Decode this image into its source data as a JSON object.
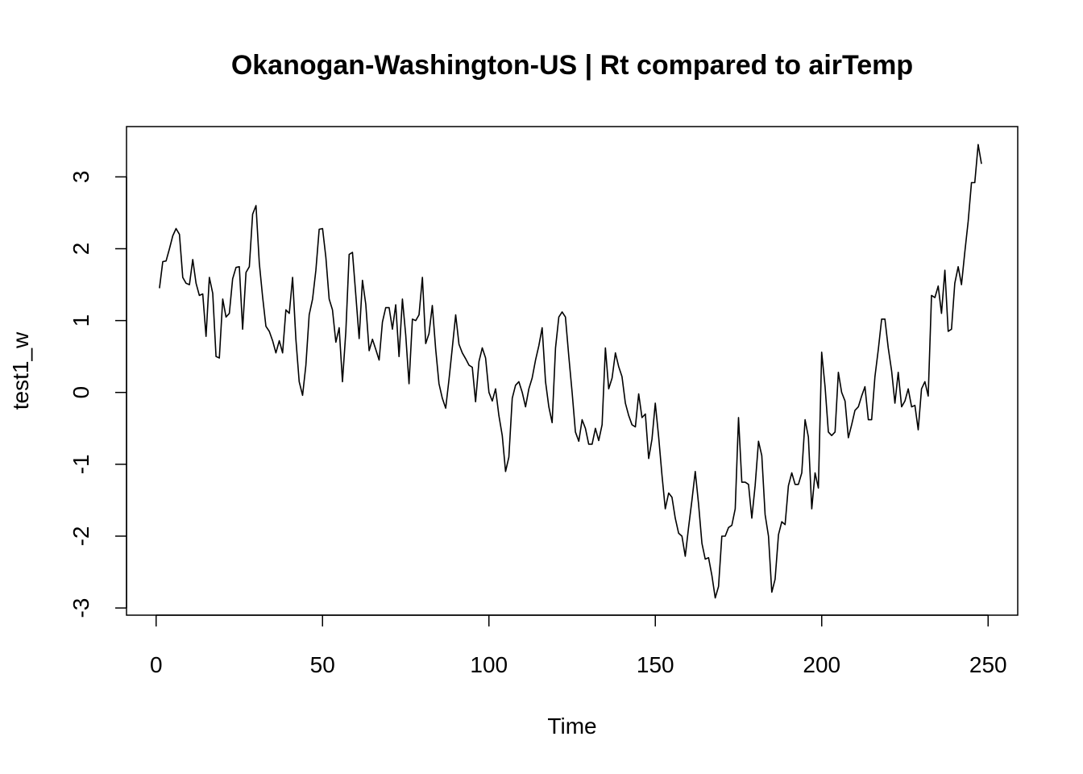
{
  "chart_data": {
    "type": "line",
    "title": "Okanogan-Washington-US | Rt compared to airTemp",
    "xlabel": "Time",
    "ylabel": "test1_w",
    "xlim": [
      -8.9,
      258.9
    ],
    "ylim": [
      -3.1,
      3.7
    ],
    "xticks": [
      0,
      50,
      100,
      150,
      200,
      250
    ],
    "yticks": [
      -3,
      -2,
      -1,
      0,
      1,
      2,
      3
    ],
    "grid": false,
    "legend": "none",
    "line_color": "#000000",
    "series": [
      {
        "x": [
          1,
          2,
          3,
          4,
          5,
          6,
          7,
          8,
          9,
          10,
          11,
          12,
          13,
          14,
          15,
          16,
          17,
          18,
          19,
          20,
          21,
          22,
          23,
          24,
          25,
          26,
          27,
          28,
          29,
          30,
          31,
          32,
          33,
          34,
          35,
          36,
          37,
          38,
          39,
          40,
          41,
          42,
          43,
          44,
          45,
          46,
          47,
          48,
          49,
          50,
          51,
          52,
          53,
          54,
          55,
          56,
          57,
          58,
          59,
          60,
          61,
          62,
          63,
          64,
          65,
          66,
          67,
          68,
          69,
          70,
          71,
          72,
          73,
          74,
          75,
          76,
          77,
          78,
          79,
          80,
          81,
          82,
          83,
          84,
          85,
          86,
          87,
          88,
          89,
          90,
          91,
          92,
          93,
          94,
          95,
          96,
          97,
          98,
          99,
          100,
          101,
          102,
          103,
          104,
          105,
          106,
          107,
          108,
          109,
          110,
          111,
          112,
          113,
          114,
          115,
          116,
          117,
          118,
          119,
          120,
          121,
          122,
          123,
          124,
          125,
          126,
          127,
          128,
          129,
          130,
          131,
          132,
          133,
          134,
          135,
          136,
          137,
          138,
          139,
          140,
          141,
          142,
          143,
          144,
          145,
          146,
          147,
          148,
          149,
          150,
          151,
          152,
          153,
          154,
          155,
          156,
          157,
          158,
          159,
          160,
          161,
          162,
          163,
          164,
          165,
          166,
          167,
          168,
          169,
          170,
          171,
          172,
          173,
          174,
          175,
          176,
          177,
          178,
          179,
          180,
          181,
          182,
          183,
          184,
          185,
          186,
          187,
          188,
          189,
          190,
          191,
          192,
          193,
          194,
          195,
          196,
          197,
          198,
          199,
          200,
          201,
          202,
          203,
          204,
          205,
          206,
          207,
          208,
          209,
          210,
          211,
          212,
          213,
          214,
          215,
          216,
          217,
          218,
          219,
          220,
          221,
          222,
          223,
          224,
          225,
          226,
          227,
          228,
          229,
          230,
          231,
          232,
          233,
          234,
          235,
          236,
          237,
          238,
          239,
          240,
          241,
          242,
          243,
          244,
          245,
          246,
          247,
          248
        ],
        "values": [
          1.45,
          1.82,
          1.83,
          2.0,
          2.18,
          2.28,
          2.2,
          1.6,
          1.52,
          1.5,
          1.85,
          1.52,
          1.35,
          1.37,
          0.78,
          1.6,
          1.38,
          0.5,
          0.48,
          1.3,
          1.05,
          1.1,
          1.58,
          1.74,
          1.75,
          0.88,
          1.67,
          1.75,
          2.48,
          2.6,
          1.8,
          1.33,
          0.92,
          0.85,
          0.72,
          0.55,
          0.72,
          0.55,
          1.15,
          1.1,
          1.6,
          0.74,
          0.15,
          -0.04,
          0.38,
          1.08,
          1.3,
          1.7,
          2.27,
          2.28,
          1.88,
          1.3,
          1.15,
          0.7,
          0.9,
          0.15,
          0.85,
          1.92,
          1.95,
          1.35,
          0.75,
          1.56,
          1.23,
          0.58,
          0.74,
          0.6,
          0.45,
          0.98,
          1.18,
          1.18,
          0.88,
          1.22,
          0.5,
          1.3,
          0.8,
          0.12,
          1.02,
          1.0,
          1.08,
          1.6,
          0.68,
          0.82,
          1.21,
          0.6,
          0.12,
          -0.08,
          -0.22,
          0.18,
          0.62,
          1.08,
          0.67,
          0.55,
          0.47,
          0.38,
          0.35,
          -0.13,
          0.43,
          0.62,
          0.48,
          0.0,
          -0.12,
          0.05,
          -0.32,
          -0.6,
          -1.1,
          -0.9,
          -0.08,
          0.1,
          0.15,
          0.0,
          -0.2,
          0.05,
          0.2,
          0.45,
          0.65,
          0.9,
          0.15,
          -0.2,
          -0.42,
          0.62,
          1.05,
          1.12,
          1.05,
          0.5,
          0.0,
          -0.55,
          -0.68,
          -0.38,
          -0.5,
          -0.72,
          -0.72,
          -0.5,
          -0.67,
          -0.45,
          0.62,
          0.05,
          0.2,
          0.55,
          0.36,
          0.22,
          -0.15,
          -0.32,
          -0.45,
          -0.48,
          -0.02,
          -0.35,
          -0.3,
          -0.92,
          -0.65,
          -0.15,
          -0.62,
          -1.15,
          -1.62,
          -1.4,
          -1.46,
          -1.75,
          -1.96,
          -2.0,
          -2.28,
          -1.88,
          -1.5,
          -1.1,
          -1.55,
          -2.1,
          -2.32,
          -2.3,
          -2.55,
          -2.86,
          -2.7,
          -2.0,
          -2.0,
          -1.88,
          -1.85,
          -1.62,
          -0.35,
          -1.25,
          -1.25,
          -1.28,
          -1.75,
          -1.3,
          -0.68,
          -0.88,
          -1.7,
          -2.0,
          -2.78,
          -2.6,
          -1.98,
          -1.8,
          -1.84,
          -1.3,
          -1.12,
          -1.28,
          -1.28,
          -1.12,
          -0.38,
          -0.62,
          -1.62,
          -1.12,
          -1.33,
          0.56,
          0.08,
          -0.55,
          -0.6,
          -0.55,
          0.28,
          0.0,
          -0.12,
          -0.63,
          -0.45,
          -0.25,
          -0.2,
          -0.05,
          0.08,
          -0.38,
          -0.38,
          0.22,
          0.6,
          1.02,
          1.02,
          0.62,
          0.3,
          -0.15,
          0.28,
          -0.2,
          -0.12,
          0.05,
          -0.2,
          -0.18,
          -0.52,
          0.05,
          0.15,
          -0.05,
          1.35,
          1.32,
          1.48,
          1.1,
          1.7,
          0.85,
          0.88,
          1.52,
          1.75,
          1.5,
          1.95,
          2.38,
          2.92,
          2.92,
          3.45,
          3.18
        ]
      }
    ]
  }
}
